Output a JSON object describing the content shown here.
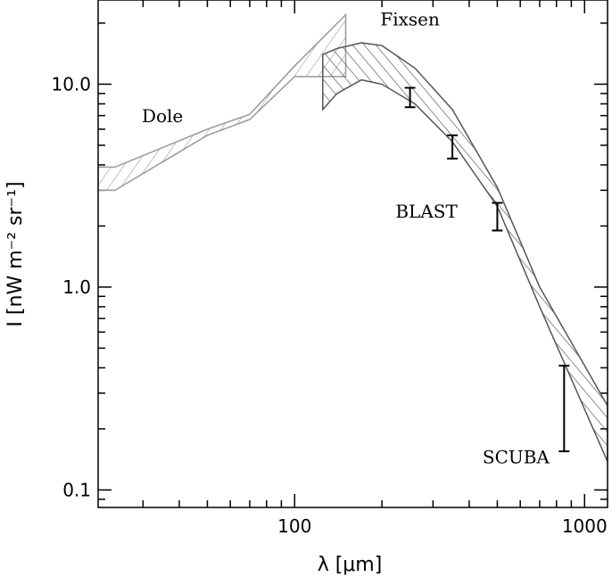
{
  "chart_data": {
    "type": "scatter",
    "x_scale": "log",
    "y_scale": "log",
    "xlabel": "λ [μm]",
    "ylabel": "I [nW m⁻² sr⁻¹]",
    "xlim": [
      21,
      1200
    ],
    "ylim": [
      0.082,
      26
    ],
    "x_ticks": [
      100,
      1000
    ],
    "x_tick_labels": [
      "100",
      "1000"
    ],
    "y_ticks": [
      0.1,
      1.0,
      10.0
    ],
    "y_tick_labels": [
      "0.1",
      "1.0",
      "10.0"
    ],
    "series": [
      {
        "name": "Dole",
        "kind": "band",
        "color": "#999999",
        "x": [
          21,
          24,
          50,
          70,
          100,
          150
        ],
        "lower": [
          3.0,
          3.0,
          5.6,
          6.7,
          10.9,
          10.9
        ],
        "upper": [
          3.9,
          3.9,
          6.0,
          7.1,
          12.3,
          22.0
        ]
      },
      {
        "name": "Fixsen",
        "kind": "band",
        "color": "#555555",
        "x": [
          125,
          140,
          170,
          200,
          260,
          350,
          500,
          700,
          1200
        ],
        "lower": [
          7.5,
          9.0,
          10.5,
          10.0,
          8.0,
          5.2,
          2.5,
          0.8,
          0.138
        ],
        "upper": [
          14.0,
          15.0,
          16.0,
          15.5,
          12.0,
          7.5,
          3.1,
          1.0,
          0.26
        ]
      },
      {
        "name": "BLAST",
        "kind": "errorbar",
        "color": "#000000",
        "x": [
          250,
          350,
          500
        ],
        "low": [
          7.7,
          4.3,
          1.9
        ],
        "high": [
          9.6,
          5.6,
          2.6
        ]
      },
      {
        "name": "SCUBA",
        "kind": "errorbar",
        "color": "#000000",
        "x": [
          850
        ],
        "low": [
          0.155
        ],
        "high": [
          0.41
        ]
      }
    ],
    "annotations": [
      {
        "text": "Dole",
        "x": 35,
        "y": 6.5
      },
      {
        "text": "Fixsen",
        "x": 250,
        "y": 19.5
      },
      {
        "text": "BLAST",
        "x": 285,
        "y": 2.2
      },
      {
        "text": "SCUBA",
        "x": 580,
        "y": 0.135
      }
    ]
  }
}
